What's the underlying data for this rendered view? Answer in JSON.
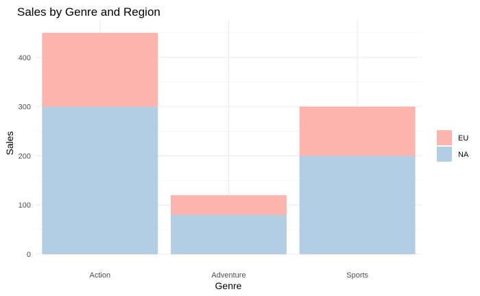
{
  "chart_data": {
    "type": "bar",
    "stacked": true,
    "title": "Sales by Genre and Region",
    "xlabel": "Genre",
    "ylabel": "Sales",
    "categories": [
      "Action",
      "Adventure",
      "Sports"
    ],
    "series": [
      {
        "name": "NA",
        "values": [
          300,
          80,
          200
        ],
        "color": "#b3cde3"
      },
      {
        "name": "EU",
        "values": [
          150,
          40,
          100
        ],
        "color": "#fbb4ae"
      }
    ],
    "ylim": [
      0,
      450
    ],
    "yticks": [
      0,
      100,
      200,
      300,
      400
    ],
    "grid": true,
    "legend": {
      "position": "right",
      "order": [
        "EU",
        "NA"
      ]
    }
  }
}
